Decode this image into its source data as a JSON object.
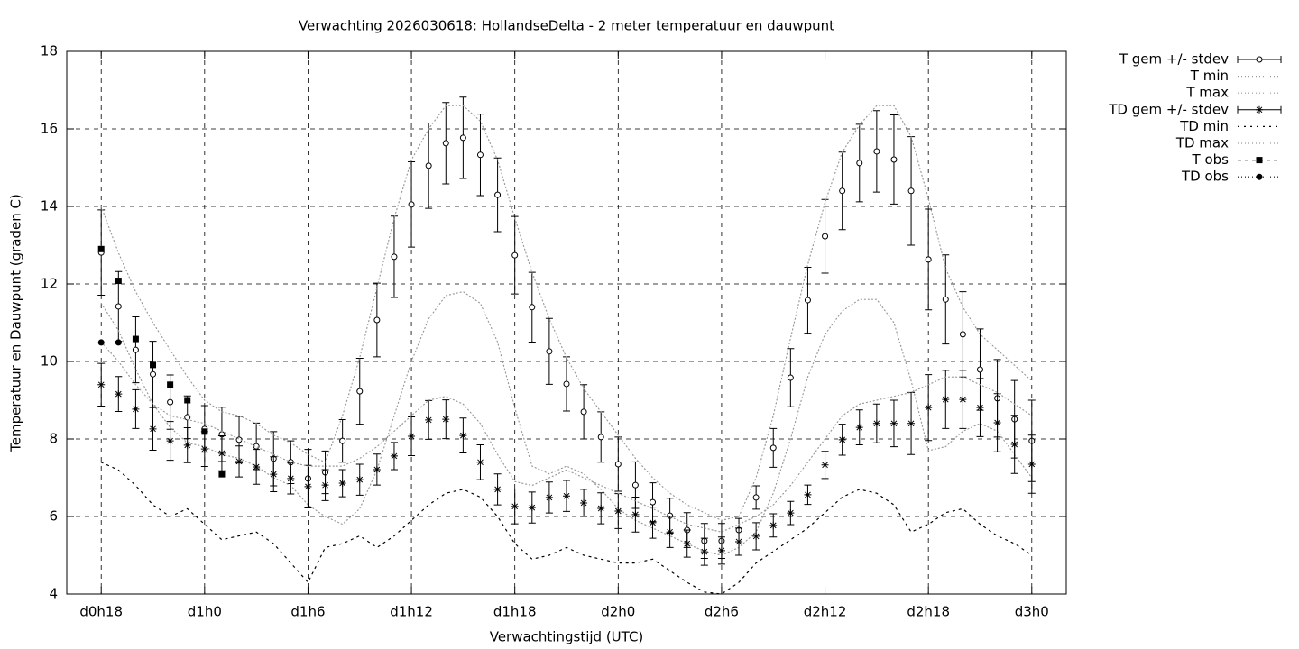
{
  "chart_data": {
    "type": "errorbar",
    "title": "Verwachting 2026030618: HollandseDelta - 2 meter temperatuur en dauwpunt",
    "xlabel": "Verwachtingstijd (UTC)",
    "ylabel": "Temperatuur en Dauwpunt (graden C)",
    "x": [
      0,
      1,
      2,
      3,
      4,
      5,
      6,
      7,
      8,
      9,
      10,
      11,
      12,
      13,
      14,
      15,
      16,
      17,
      18,
      19,
      20,
      21,
      22,
      23,
      24,
      25,
      26,
      27,
      28,
      29,
      30,
      31,
      32,
      33,
      34,
      35,
      36,
      37,
      38,
      39,
      40,
      41,
      42,
      43,
      44,
      45,
      46,
      47,
      48,
      49,
      50,
      51,
      52,
      53,
      54
    ],
    "xlim": [
      -2,
      56
    ],
    "xticks": [
      {
        "value": 0,
        "label": "d0h18"
      },
      {
        "value": 6,
        "label": "d1h0"
      },
      {
        "value": 12,
        "label": "d1h6"
      },
      {
        "value": 18,
        "label": "d1h12"
      },
      {
        "value": 24,
        "label": "d1h18"
      },
      {
        "value": 30,
        "label": "d2h0"
      },
      {
        "value": 36,
        "label": "d2h6"
      },
      {
        "value": 42,
        "label": "d2h12"
      },
      {
        "value": 48,
        "label": "d2h18"
      },
      {
        "value": 54,
        "label": "d3h0"
      }
    ],
    "ylim": [
      4,
      18
    ],
    "yticks": [
      4,
      6,
      8,
      10,
      12,
      14,
      16,
      18
    ],
    "grid": true,
    "legend": "outside-right",
    "series": [
      {
        "name": "T gem +/- stdev",
        "style": "errorbars",
        "marker": "circle",
        "color": "#000000",
        "values": [
          12.81,
          11.42,
          10.3,
          9.67,
          8.95,
          8.56,
          8.26,
          8.12,
          7.98,
          7.81,
          7.49,
          7.4,
          6.98,
          7.14,
          7.95,
          9.23,
          11.07,
          12.7,
          14.05,
          15.05,
          15.63,
          15.77,
          15.33,
          14.3,
          12.74,
          11.4,
          10.26,
          9.42,
          8.7,
          8.05,
          7.35,
          6.81,
          6.37,
          6.02,
          5.65,
          5.37,
          5.37,
          5.65,
          6.49,
          7.77,
          9.58,
          11.58,
          13.23,
          14.4,
          15.12,
          15.42,
          15.21,
          14.4,
          12.63,
          11.6,
          10.7,
          9.79,
          9.05,
          8.51,
          7.95
        ],
        "errors": [
          1.1,
          0.9,
          0.85,
          0.85,
          0.7,
          0.55,
          0.6,
          0.7,
          0.6,
          0.6,
          0.7,
          0.55,
          0.75,
          0.55,
          0.55,
          0.85,
          0.95,
          1.05,
          1.1,
          1.1,
          1.05,
          1.05,
          1.05,
          0.95,
          1.0,
          0.9,
          0.85,
          0.7,
          0.7,
          0.65,
          0.7,
          0.6,
          0.5,
          0.45,
          0.45,
          0.45,
          0.45,
          0.3,
          0.3,
          0.5,
          0.75,
          0.85,
          0.95,
          1.0,
          1.0,
          1.05,
          1.15,
          1.4,
          1.3,
          1.15,
          1.1,
          1.05,
          1.0,
          1.0,
          1.05
        ]
      },
      {
        "name": "T min",
        "style": "dotted",
        "dash": "1 3",
        "color": "#9a9a9a",
        "values": [
          11.5,
          10.8,
          9.8,
          8.9,
          8.3,
          7.9,
          7.8,
          7.6,
          7.5,
          7.3,
          7.0,
          6.8,
          6.3,
          6.0,
          5.8,
          6.2,
          7.2,
          8.6,
          10.0,
          11.1,
          11.7,
          11.8,
          11.5,
          10.5,
          8.8,
          7.3,
          7.1,
          7.3,
          7.1,
          6.7,
          6.2,
          5.9,
          5.7,
          5.5,
          5.3,
          5.1,
          5.0,
          5.2,
          5.6,
          6.6,
          8.0,
          9.6,
          10.7,
          11.3,
          11.6,
          11.6,
          11.0,
          9.5,
          7.7,
          7.8,
          8.2,
          8.4,
          8.2,
          7.6,
          7.0
        ]
      },
      {
        "name": "T max",
        "style": "dotted",
        "dash": "1 3",
        "color": "#9a9a9a",
        "values": [
          14.0,
          12.8,
          11.8,
          11.0,
          10.3,
          9.6,
          9.0,
          8.7,
          8.6,
          8.4,
          8.1,
          7.9,
          7.6,
          7.4,
          8.6,
          10.1,
          11.9,
          13.7,
          15.2,
          16.0,
          16.6,
          16.6,
          16.2,
          15.2,
          13.7,
          12.3,
          11.1,
          10.1,
          9.3,
          8.7,
          8.1,
          7.5,
          7.0,
          6.6,
          6.3,
          6.1,
          5.9,
          6.0,
          7.0,
          8.6,
          10.6,
          12.5,
          14.1,
          15.4,
          16.1,
          16.6,
          16.6,
          15.8,
          14.2,
          12.4,
          11.4,
          10.7,
          10.3,
          9.9,
          9.5
        ]
      },
      {
        "name": "TD gem +/- stdev",
        "style": "errorbars",
        "marker": "star",
        "color": "#000000",
        "values": [
          9.4,
          9.16,
          8.77,
          8.26,
          7.95,
          7.84,
          7.74,
          7.63,
          7.42,
          7.28,
          7.09,
          6.98,
          6.77,
          6.81,
          6.86,
          6.95,
          7.21,
          7.56,
          8.07,
          8.49,
          8.51,
          8.09,
          7.4,
          6.7,
          6.26,
          6.23,
          6.49,
          6.53,
          6.35,
          6.21,
          6.14,
          6.05,
          5.84,
          5.6,
          5.3,
          5.09,
          5.12,
          5.35,
          5.49,
          5.77,
          6.09,
          6.56,
          7.33,
          7.98,
          8.3,
          8.4,
          8.4,
          8.4,
          8.81,
          9.02,
          9.02,
          8.81,
          8.42,
          7.86,
          7.35
        ],
        "errors": [
          0.55,
          0.45,
          0.5,
          0.55,
          0.5,
          0.45,
          0.45,
          0.45,
          0.4,
          0.45,
          0.45,
          0.4,
          0.55,
          0.4,
          0.35,
          0.4,
          0.4,
          0.35,
          0.5,
          0.5,
          0.5,
          0.45,
          0.45,
          0.4,
          0.45,
          0.4,
          0.4,
          0.4,
          0.35,
          0.4,
          0.45,
          0.45,
          0.4,
          0.4,
          0.35,
          0.35,
          0.35,
          0.35,
          0.35,
          0.3,
          0.3,
          0.25,
          0.35,
          0.4,
          0.45,
          0.5,
          0.6,
          0.8,
          0.85,
          0.75,
          0.75,
          0.75,
          0.75,
          0.75,
          0.75
        ]
      },
      {
        "name": "TD min",
        "style": "dotted",
        "dash": "2 5",
        "color": "#000000",
        "values": [
          7.4,
          7.2,
          6.8,
          6.3,
          6.0,
          6.2,
          5.8,
          5.4,
          5.5,
          5.6,
          5.3,
          4.8,
          4.3,
          5.2,
          5.3,
          5.5,
          5.2,
          5.5,
          5.9,
          6.3,
          6.6,
          6.7,
          6.5,
          6.0,
          5.3,
          4.9,
          5.0,
          5.2,
          5.0,
          4.9,
          4.8,
          4.8,
          4.9,
          4.6,
          4.3,
          4.05,
          4.0,
          4.3,
          4.8,
          5.1,
          5.4,
          5.7,
          6.1,
          6.5,
          6.7,
          6.6,
          6.3,
          5.6,
          5.8,
          6.1,
          6.2,
          5.8,
          5.5,
          5.3,
          5.0
        ]
      },
      {
        "name": "TD max",
        "style": "dotted",
        "dash": "1 3",
        "color": "#9a9a9a",
        "values": [
          10.5,
          10.0,
          9.4,
          8.9,
          8.6,
          8.5,
          8.4,
          8.2,
          8.0,
          7.8,
          7.6,
          7.4,
          7.3,
          7.3,
          7.3,
          7.5,
          7.8,
          8.2,
          8.6,
          9.0,
          9.1,
          8.9,
          8.4,
          7.6,
          6.9,
          6.8,
          7.0,
          7.2,
          7.0,
          6.8,
          6.6,
          6.4,
          6.2,
          6.0,
          5.8,
          5.7,
          5.6,
          5.8,
          6.0,
          6.3,
          6.8,
          7.4,
          8.0,
          8.6,
          8.9,
          9.0,
          9.1,
          9.2,
          9.4,
          9.6,
          9.6,
          9.4,
          9.2,
          8.9,
          8.6
        ]
      },
      {
        "name": "T obs",
        "style": "points",
        "marker": "square",
        "dash": "4 4",
        "color": "#000000",
        "values": [
          12.9,
          12.08,
          10.58,
          9.91,
          9.4,
          9.0,
          8.19,
          7.09,
          null,
          null,
          null,
          null,
          null,
          null,
          null,
          null,
          null,
          null,
          null,
          null,
          null,
          null,
          null,
          null,
          null,
          null,
          null,
          null,
          null,
          null,
          null,
          null,
          null,
          null,
          null,
          null,
          null,
          null,
          null,
          null,
          null,
          null,
          null,
          null,
          null,
          null,
          null,
          null,
          null,
          null,
          null,
          null,
          null,
          null,
          null
        ]
      },
      {
        "name": "TD obs",
        "style": "points",
        "marker": "dot",
        "dash": "1 3",
        "color": "#000000",
        "values": [
          10.49,
          10.49,
          null,
          null,
          null,
          null,
          null,
          null,
          null,
          null,
          null,
          null,
          null,
          null,
          null,
          null,
          null,
          null,
          null,
          null,
          null,
          null,
          null,
          null,
          null,
          null,
          null,
          null,
          null,
          null,
          null,
          null,
          null,
          null,
          null,
          null,
          null,
          null,
          null,
          null,
          null,
          null,
          null,
          null,
          null,
          null,
          null,
          null,
          null,
          null,
          null,
          null,
          null,
          null,
          null
        ]
      }
    ]
  }
}
